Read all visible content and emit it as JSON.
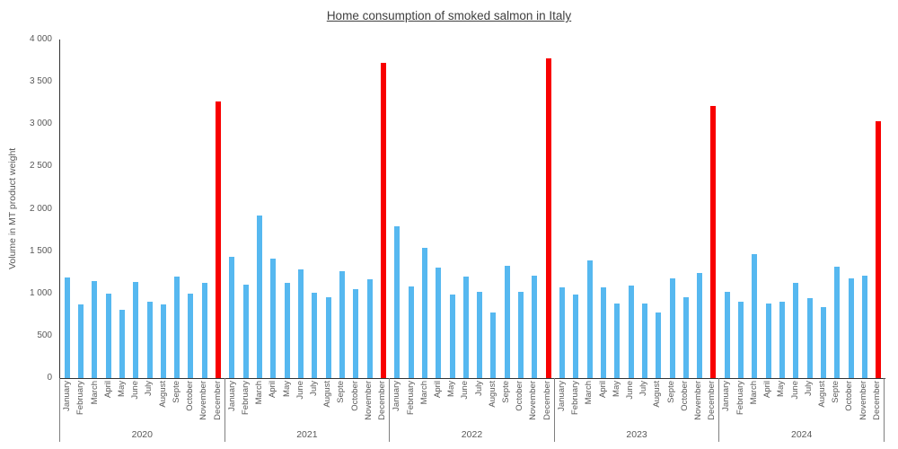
{
  "title": "Home consumption of smoked salmon in Italy",
  "y_axis": {
    "label": "Volume in MT product weight",
    "tick_labels": [
      "0",
      "500",
      "1 000",
      "1 500",
      "2 000",
      "2 500",
      "3 000",
      "3 500",
      "4 000"
    ],
    "tick_values": [
      0,
      500,
      1000,
      1500,
      2000,
      2500,
      3000,
      3500,
      4000
    ]
  },
  "x_axis": {
    "month_labels": [
      "January",
      "February",
      "March",
      "April",
      "May",
      "June",
      "July",
      "August",
      "Septe",
      "October",
      "November",
      "December"
    ],
    "year_labels": [
      "2020",
      "2021",
      "2022",
      "2023",
      "2024"
    ]
  },
  "colors": {
    "bar_default": "#56B8F0",
    "bar_december": "#F80000",
    "axis_line": "#333333",
    "separator_line": "#7f7f7f",
    "label_text": "#595959",
    "title_text": "#404040"
  },
  "chart_data": {
    "type": "bar",
    "title": "Home consumption of smoked salmon in Italy",
    "xlabel": "",
    "ylabel": "Volume in MT product weight",
    "ylim": [
      0,
      4000
    ],
    "grid": false,
    "legend": "none",
    "categories": [
      "January",
      "February",
      "March",
      "April",
      "May",
      "June",
      "July",
      "August",
      "September",
      "October",
      "November",
      "December"
    ],
    "highlight": "December bars are red, all other months are light blue",
    "series": [
      {
        "name": "2020",
        "values": [
          1190,
          870,
          1150,
          1000,
          805,
          1140,
          900,
          875,
          1200,
          1000,
          1130,
          3270
        ]
      },
      {
        "name": "2021",
        "values": [
          1430,
          1105,
          1920,
          1410,
          1130,
          1280,
          1010,
          960,
          1265,
          1050,
          1170,
          3720
        ]
      },
      {
        "name": "2022",
        "values": [
          1790,
          1080,
          1540,
          1300,
          990,
          1200,
          1020,
          770,
          1325,
          1020,
          1215,
          3780
        ]
      },
      {
        "name": "2023",
        "values": [
          1070,
          990,
          1390,
          1070,
          885,
          1090,
          885,
          770,
          1180,
          960,
          1240,
          3210
        ]
      },
      {
        "name": "2024",
        "values": [
          1020,
          900,
          1460,
          885,
          900,
          1120,
          940,
          840,
          1315,
          1180,
          1210,
          3030
        ]
      }
    ]
  }
}
